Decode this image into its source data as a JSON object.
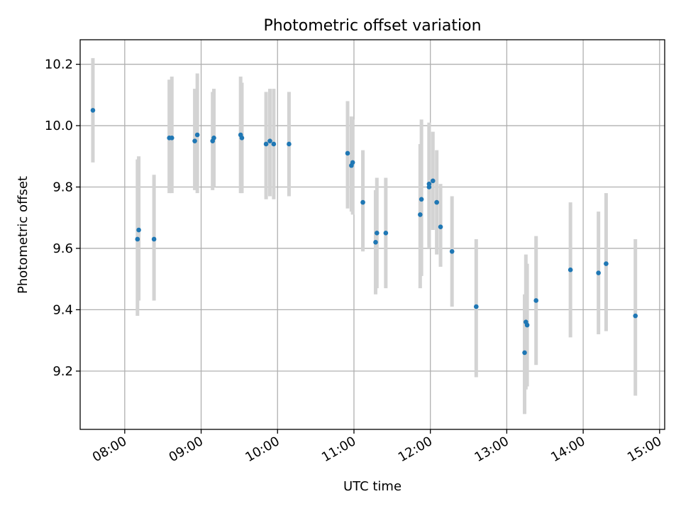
{
  "chart_data": {
    "type": "scatter",
    "title": "Photometric offset variation",
    "xlabel": "UTC time",
    "ylabel": "Photometric offset",
    "x_axis_type": "time",
    "xlim": [
      "07:25",
      "15:04"
    ],
    "ylim": [
      9.01,
      10.28
    ],
    "x_ticks": [
      "08:00",
      "09:00",
      "10:00",
      "11:00",
      "12:00",
      "13:00",
      "14:00",
      "15:00"
    ],
    "y_ticks": [
      9.2,
      9.4,
      9.6,
      9.8,
      10.0,
      10.2
    ],
    "y_tick_labels": [
      "9.2",
      "9.4",
      "9.6",
      "9.8",
      "10.0",
      "10.2"
    ],
    "grid": true,
    "colors": {
      "points": "#1f77b4",
      "error_bars": "#d3d3d3",
      "grid": "#b0b0b0"
    },
    "points": [
      {
        "x": "07:35",
        "y": 10.05,
        "ylo": 9.88,
        "yhi": 10.22
      },
      {
        "x": "08:10",
        "y": 9.63,
        "ylo": 9.38,
        "yhi": 9.89
      },
      {
        "x": "08:11",
        "y": 9.66,
        "ylo": 9.43,
        "yhi": 9.9
      },
      {
        "x": "08:23",
        "y": 9.63,
        "ylo": 9.43,
        "yhi": 9.84
      },
      {
        "x": "08:35",
        "y": 9.96,
        "ylo": 9.78,
        "yhi": 10.15
      },
      {
        "x": "08:37",
        "y": 9.96,
        "ylo": 9.78,
        "yhi": 10.16
      },
      {
        "x": "08:55",
        "y": 9.95,
        "ylo": 9.79,
        "yhi": 10.12
      },
      {
        "x": "08:57",
        "y": 9.97,
        "ylo": 9.78,
        "yhi": 10.17
      },
      {
        "x": "09:09",
        "y": 9.95,
        "ylo": 9.79,
        "yhi": 10.11
      },
      {
        "x": "09:10",
        "y": 9.96,
        "ylo": 9.8,
        "yhi": 10.12
      },
      {
        "x": "09:31",
        "y": 9.97,
        "ylo": 9.78,
        "yhi": 10.16
      },
      {
        "x": "09:32",
        "y": 9.96,
        "ylo": 9.78,
        "yhi": 10.14
      },
      {
        "x": "09:51",
        "y": 9.94,
        "ylo": 9.76,
        "yhi": 10.11
      },
      {
        "x": "09:54",
        "y": 9.95,
        "ylo": 9.77,
        "yhi": 10.12
      },
      {
        "x": "09:57",
        "y": 9.94,
        "ylo": 9.76,
        "yhi": 10.12
      },
      {
        "x": "10:09",
        "y": 9.94,
        "ylo": 9.77,
        "yhi": 10.11
      },
      {
        "x": "10:55",
        "y": 9.91,
        "ylo": 9.73,
        "yhi": 10.08
      },
      {
        "x": "10:58",
        "y": 9.87,
        "ylo": 9.72,
        "yhi": 10.03
      },
      {
        "x": "10:59",
        "y": 9.88,
        "ylo": 9.71,
        "yhi": 10.02
      },
      {
        "x": "11:07",
        "y": 9.75,
        "ylo": 9.59,
        "yhi": 9.92
      },
      {
        "x": "11:17",
        "y": 9.62,
        "ylo": 9.45,
        "yhi": 9.79
      },
      {
        "x": "11:18",
        "y": 9.65,
        "ylo": 9.47,
        "yhi": 9.83
      },
      {
        "x": "11:25",
        "y": 9.65,
        "ylo": 9.47,
        "yhi": 9.83
      },
      {
        "x": "11:52",
        "y": 9.71,
        "ylo": 9.47,
        "yhi": 9.94
      },
      {
        "x": "11:53",
        "y": 9.76,
        "ylo": 9.51,
        "yhi": 10.02
      },
      {
        "x": "11:59",
        "y": 9.8,
        "ylo": 9.6,
        "yhi": 10.0
      },
      {
        "x": "11:59",
        "y": 9.81,
        "ylo": 9.61,
        "yhi": 10.01
      },
      {
        "x": "12:02",
        "y": 9.82,
        "ylo": 9.66,
        "yhi": 9.98
      },
      {
        "x": "12:05",
        "y": 9.75,
        "ylo": 9.58,
        "yhi": 9.92
      },
      {
        "x": "12:08",
        "y": 9.67,
        "ylo": 9.54,
        "yhi": 9.81
      },
      {
        "x": "12:17",
        "y": 9.59,
        "ylo": 9.41,
        "yhi": 9.77
      },
      {
        "x": "12:36",
        "y": 9.41,
        "ylo": 9.18,
        "yhi": 9.63
      },
      {
        "x": "13:14",
        "y": 9.26,
        "ylo": 9.06,
        "yhi": 9.45
      },
      {
        "x": "13:15",
        "y": 9.36,
        "ylo": 9.14,
        "yhi": 9.58
      },
      {
        "x": "13:16",
        "y": 9.35,
        "ylo": 9.15,
        "yhi": 9.55
      },
      {
        "x": "13:23",
        "y": 9.43,
        "ylo": 9.22,
        "yhi": 9.64
      },
      {
        "x": "13:50",
        "y": 9.53,
        "ylo": 9.31,
        "yhi": 9.75
      },
      {
        "x": "14:12",
        "y": 9.52,
        "ylo": 9.32,
        "yhi": 9.72
      },
      {
        "x": "14:18",
        "y": 9.55,
        "ylo": 9.33,
        "yhi": 9.78
      },
      {
        "x": "14:41",
        "y": 9.38,
        "ylo": 9.12,
        "yhi": 9.63
      }
    ]
  }
}
